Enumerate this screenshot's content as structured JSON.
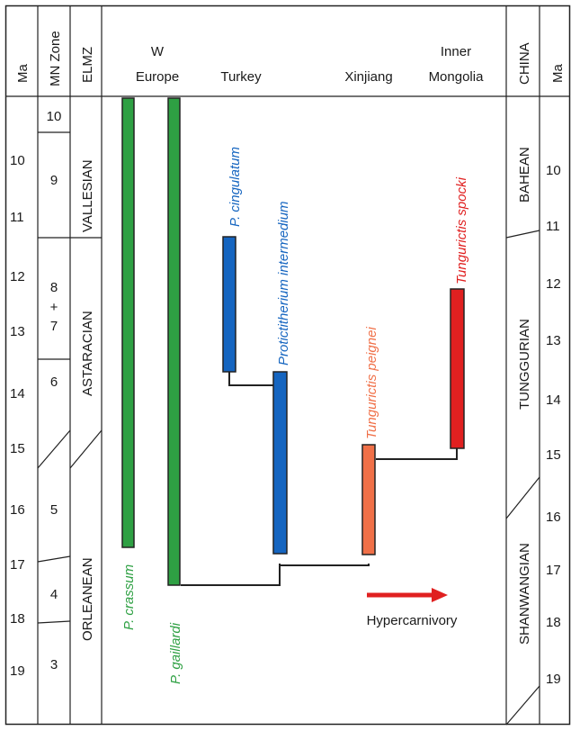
{
  "headers": {
    "ma_left": "Ma",
    "mn_zone": "MN Zone",
    "elmz": "ELMZ",
    "china": "CHINA",
    "ma_right": "Ma",
    "columns": [
      {
        "lines": [
          "W",
          "Europe"
        ],
        "color": "#2ea043"
      },
      {
        "lines": [
          "Turkey"
        ],
        "color": "#1565c0"
      },
      {
        "lines": [
          "Xinjiang"
        ],
        "color": "#f07048"
      },
      {
        "lines": [
          "Inner",
          "Mongolia"
        ],
        "color": "#e02020"
      }
    ]
  },
  "ma_ticks_left": [
    "10",
    "11",
    "12",
    "13",
    "14",
    "15",
    "16",
    "17",
    "18",
    "19"
  ],
  "ma_ticks_right": [
    "10",
    "11",
    "12",
    "13",
    "14",
    "15",
    "16",
    "17",
    "18",
    "19"
  ],
  "mn_zones": [
    "10",
    "9",
    "8",
    "+",
    "7",
    "6",
    "5",
    "4",
    "3"
  ],
  "elmz": [
    "VALLESIAN",
    "ASTARACIAN",
    "ORLEANEAN"
  ],
  "china_stages": [
    "BAHEAN",
    "TUNGGURIAN",
    "SHANWANGIAN"
  ],
  "taxa": [
    {
      "name": "P. crassum",
      "color": "#2ea043",
      "start_ma": 9.3,
      "end_ma": 16.9
    },
    {
      "name": "P. gaillardi",
      "color": "#2ea043",
      "start_ma": 9.3,
      "end_ma": 17.75
    },
    {
      "name": "P. cingulatum",
      "color": "#1565c0",
      "start_ma": 11.6,
      "end_ma": 13.7
    },
    {
      "name": "Protictitherium intermedium",
      "color": "#1565c0",
      "start_ma": 13.7,
      "end_ma": 16.9
    },
    {
      "name": "Tungurictis peignei",
      "color": "#f07048",
      "start_ma": 14.85,
      "end_ma": 16.9
    },
    {
      "name": "Tungurictis spocki",
      "color": "#e02020",
      "start_ma": 12.2,
      "end_ma": 14.85
    }
  ],
  "trend": {
    "label": "Hypercarnivory",
    "color": "#e02020"
  }
}
